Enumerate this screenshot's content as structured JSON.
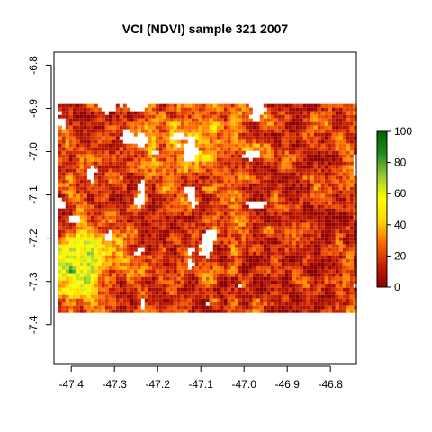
{
  "chart_data": {
    "type": "heatmap",
    "title": "VCI (NDVI) sample 321 2007",
    "xlabel": "",
    "ylabel": "",
    "xlim": [
      -47.44,
      -46.74
    ],
    "ylim": [
      -7.49,
      -6.77
    ],
    "x_ticks": [
      "-47.4",
      "-47.3",
      "-47.2",
      "-47.1",
      "-47.0",
      "-46.9",
      "-46.8"
    ],
    "y_ticks": [
      "-6.8",
      "-6.9",
      "-7.0",
      "-7.1",
      "-7.2",
      "-7.3",
      "-7.4"
    ],
    "raster_extent": {
      "x": [
        -47.43,
        -46.74
      ],
      "y": [
        -7.37,
        -6.89
      ]
    },
    "value_range": [
      0,
      100
    ],
    "colorbar": {
      "ticks": [
        "0",
        "20",
        "40",
        "60",
        "80",
        "100"
      ],
      "colors": [
        "#8b0000",
        "#c81e00",
        "#ff6a00",
        "#ffd700",
        "#ffff00",
        "#9acd32",
        "#228b22",
        "#006400"
      ]
    },
    "missing_color": "#ffffff",
    "regions": {
      "west_green_cluster": {
        "lon": [
          -47.43,
          -47.33
        ],
        "lat": [
          -7.33,
          -7.2
        ],
        "typical_value": 70
      },
      "central_north_mixed": {
        "lon": [
          -47.2,
          -47.0
        ],
        "lat": [
          -7.05,
          -6.89
        ],
        "typical_value": 40
      },
      "east_low": {
        "lon": [
          -46.95,
          -46.74
        ],
        "lat": [
          -7.37,
          -7.1
        ],
        "typical_value": 10
      }
    }
  }
}
